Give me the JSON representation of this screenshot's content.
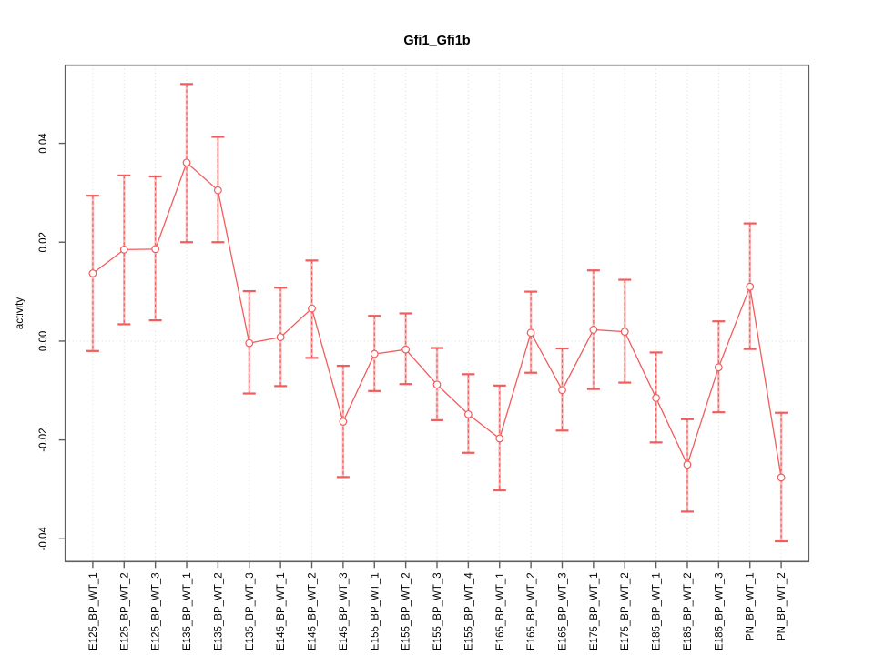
{
  "figure": {
    "background": "#ffffff"
  },
  "chart_data": {
    "type": "scatter",
    "subtype": "point-estimates-with-error-bars-connected-by-line",
    "title": "Gfi1_Gfi1b",
    "xlabel": "",
    "ylabel": "activity",
    "legend": "none",
    "grid": "vertical dotted gridline at every category; dotted horizontal line at y=0 only",
    "marker": "open-circle",
    "ylim": [
      -0.0446,
      0.0558
    ],
    "yticks": [
      0.04,
      0.02,
      0.0,
      -0.02,
      -0.04
    ],
    "ytick_labels": [
      "0.04",
      "0.02",
      "0.00",
      "-0.02",
      "-0.04"
    ],
    "categories": [
      "E125_BP_WT_1",
      "E125_BP_WT_2",
      "E125_BP_WT_3",
      "E135_BP_WT_1",
      "E135_BP_WT_2",
      "E135_BP_WT_3",
      "E145_BP_WT_1",
      "E145_BP_WT_2",
      "E145_BP_WT_3",
      "E155_BP_WT_1",
      "E155_BP_WT_2",
      "E155_BP_WT_3",
      "E155_BP_WT_4",
      "E165_BP_WT_1",
      "E165_BP_WT_2",
      "E165_BP_WT_3",
      "E175_BP_WT_1",
      "E175_BP_WT_2",
      "E185_BP_WT_1",
      "E185_BP_WT_2",
      "E185_BP_WT_3",
      "PN_BP_WT_1",
      "PN_BP_WT_2"
    ],
    "series": [
      {
        "name": "activity",
        "values": [
          0.0137,
          0.0185,
          0.0186,
          0.0361,
          0.0305,
          -0.0004,
          0.0008,
          0.0066,
          -0.0163,
          -0.0026,
          -0.0017,
          -0.0088,
          -0.0148,
          -0.0197,
          0.0017,
          -0.0099,
          0.0023,
          0.0019,
          -0.0115,
          -0.025,
          -0.0053,
          0.011,
          -0.0276
        ],
        "lower": [
          -0.002,
          0.0034,
          0.0042,
          0.02,
          0.02,
          -0.0106,
          -0.0091,
          -0.0034,
          -0.0275,
          -0.0101,
          -0.0087,
          -0.016,
          -0.0226,
          -0.0302,
          -0.0064,
          -0.0181,
          -0.0097,
          -0.0084,
          -0.0205,
          -0.0345,
          -0.0144,
          -0.0016,
          -0.0405
        ],
        "upper": [
          0.0294,
          0.0335,
          0.0333,
          0.052,
          0.0413,
          0.0101,
          0.0108,
          0.0163,
          -0.005,
          0.0051,
          0.0056,
          -0.0014,
          -0.0067,
          -0.009,
          0.01,
          -0.0015,
          0.0143,
          0.0124,
          -0.0023,
          -0.0158,
          0.004,
          0.0238,
          -0.0145
        ]
      }
    ],
    "colors": {
      "series": "#f15c5c",
      "error_bar_fill": "rgba(242,110,110,0.45)",
      "grid": "#d9d9d9",
      "frame": "#5f5f5f",
      "text": "#000000",
      "background": "#ffffff"
    }
  }
}
